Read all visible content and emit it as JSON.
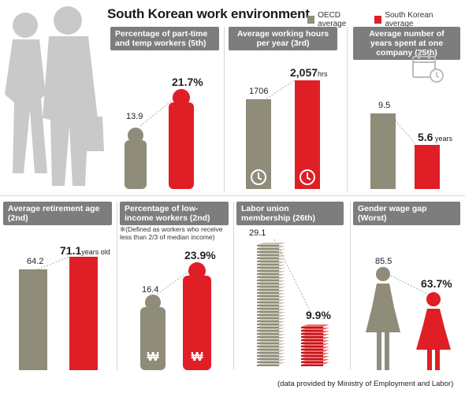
{
  "title": "South Korean work environment",
  "legend": {
    "oecd": "OECD average",
    "korea": "South Korean average"
  },
  "colors": {
    "oecd": "#8f8c7a",
    "korea": "#e01e25",
    "header": "#7d7d7d"
  },
  "panels": {
    "p1": {
      "title": "Percentage of part-time and temp workers (5th)",
      "oecd_label": "13.9",
      "korea_label": "21.7%"
    },
    "p2": {
      "title": "Average working hours per year (3rd)",
      "oecd_label": "1706",
      "korea_label": "2,057",
      "korea_unit": "hrs"
    },
    "p3": {
      "title": "Average number of years spent at one company (25th)",
      "oecd_label": "9.5",
      "korea_label": "5.6",
      "korea_unit": " years"
    },
    "p4": {
      "title": "Average retirement age (2nd)",
      "oecd_label": "64.2",
      "korea_label": "71.1",
      "korea_unit": "years old"
    },
    "p5": {
      "title": "Percentage of low-income workers (2nd)",
      "note": "※(Defined as workers who receive less than 2/3 of median income)",
      "oecd_label": "16.4",
      "korea_label": "23.9%",
      "currency_symbol": "₩"
    },
    "p6": {
      "title": "Labor union membership (26th)",
      "oecd_label": "29.1",
      "korea_label": "9.9%"
    },
    "p7": {
      "title": "Gender wage gap (Worst)",
      "oecd_label": "85.5",
      "korea_label": "63.7%"
    }
  },
  "source": "(data provided by Ministry of Employment and Labor)",
  "chart_data": [
    {
      "type": "bar",
      "title": "Percentage of part-time and temp workers (5th)",
      "categories": [
        "OECD average",
        "South Korean average"
      ],
      "values": [
        13.9,
        21.7
      ]
    },
    {
      "type": "bar",
      "title": "Average working hours per year (3rd)",
      "categories": [
        "OECD average",
        "South Korean average"
      ],
      "values": [
        1706,
        2057
      ]
    },
    {
      "type": "bar",
      "title": "Average number of years spent at one company (25th)",
      "categories": [
        "OECD average",
        "South Korean average"
      ],
      "values": [
        9.5,
        5.6
      ]
    },
    {
      "type": "bar",
      "title": "Average retirement age (2nd)",
      "categories": [
        "OECD average",
        "South Korean average"
      ],
      "values": [
        64.2,
        71.1
      ]
    },
    {
      "type": "bar",
      "title": "Percentage of low-income workers (2nd)",
      "categories": [
        "OECD average",
        "South Korean average"
      ],
      "values": [
        16.4,
        23.9
      ]
    },
    {
      "type": "bar",
      "title": "Labor union membership (26th)",
      "categories": [
        "OECD average",
        "South Korean average"
      ],
      "values": [
        29.1,
        9.9
      ]
    },
    {
      "type": "bar",
      "title": "Gender wage gap (Worst)",
      "categories": [
        "OECD average",
        "South Korean average"
      ],
      "values": [
        85.5,
        63.7
      ]
    }
  ]
}
